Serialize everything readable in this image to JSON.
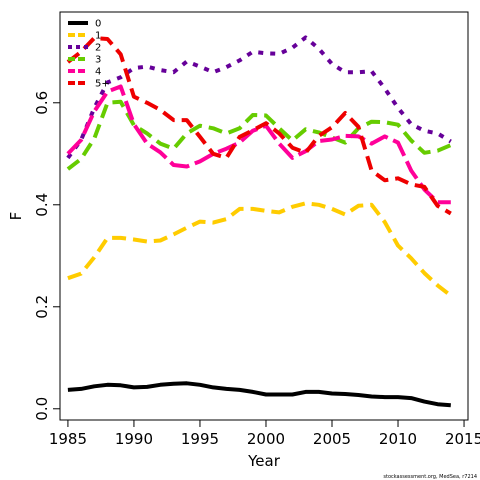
{
  "chart_data": {
    "type": "line",
    "xlabel": "Year",
    "ylabel": "F",
    "xlim": [
      1985,
      2015
    ],
    "ylim": [
      0,
      0.75
    ],
    "x_ticks": [
      1985,
      1990,
      1995,
      2000,
      2005,
      2010,
      2015
    ],
    "y_ticks": [
      0.0,
      0.2,
      0.4,
      0.6
    ],
    "x_tick_labels": [
      "1985",
      "1990",
      "1995",
      "2000",
      "2005",
      "2010",
      "2015"
    ],
    "y_tick_labels": [
      "0.0",
      "0.2",
      "0.4",
      "0.6"
    ],
    "legend_position": "top-left",
    "grid": false,
    "credit": "stockassessment.org, MedSea, r7214",
    "x": [
      1985,
      1986,
      1987,
      1988,
      1989,
      1990,
      1991,
      1992,
      1993,
      1994,
      1995,
      1996,
      1997,
      1998,
      1999,
      2000,
      2001,
      2002,
      2003,
      2004,
      2005,
      2006,
      2007,
      2008,
      2009,
      2010,
      2011,
      2012,
      2013,
      2014
    ],
    "series": [
      {
        "name": "0",
        "color": "#000000",
        "dash": "solid",
        "values": [
          0.037,
          0.039,
          0.044,
          0.047,
          0.046,
          0.042,
          0.043,
          0.047,
          0.049,
          0.05,
          0.047,
          0.042,
          0.039,
          0.037,
          0.033,
          0.028,
          0.028,
          0.028,
          0.033,
          0.033,
          0.03,
          0.029,
          0.027,
          0.024,
          0.023,
          0.023,
          0.021,
          0.014,
          0.009,
          0.007
        ]
      },
      {
        "name": "1",
        "color": "#FFCC00",
        "dash": "dash",
        "values": [
          0.256,
          0.265,
          0.297,
          0.335,
          0.335,
          0.332,
          0.328,
          0.33,
          0.342,
          0.355,
          0.367,
          0.365,
          0.372,
          0.392,
          0.392,
          0.388,
          0.385,
          0.396,
          0.403,
          0.4,
          0.392,
          0.381,
          0.398,
          0.4,
          0.366,
          0.32,
          0.295,
          0.266,
          0.242,
          0.222
        ]
      },
      {
        "name": "2",
        "color": "#660099",
        "dash": "dot",
        "values": [
          0.492,
          0.527,
          0.59,
          0.64,
          0.65,
          0.668,
          0.671,
          0.664,
          0.66,
          0.681,
          0.671,
          0.66,
          0.67,
          0.683,
          0.7,
          0.697,
          0.696,
          0.708,
          0.728,
          0.706,
          0.676,
          0.66,
          0.66,
          0.662,
          0.628,
          0.59,
          0.558,
          0.545,
          0.54,
          0.524
        ]
      },
      {
        "name": "3",
        "color": "#66CC00",
        "dash": "dash",
        "values": [
          0.47,
          0.49,
          0.53,
          0.6,
          0.602,
          0.556,
          0.54,
          0.52,
          0.51,
          0.54,
          0.555,
          0.55,
          0.54,
          0.55,
          0.576,
          0.575,
          0.55,
          0.526,
          0.548,
          0.542,
          0.532,
          0.522,
          0.55,
          0.563,
          0.562,
          0.557,
          0.526,
          0.502,
          0.506,
          0.517
        ]
      },
      {
        "name": "4",
        "color": "#FF0099",
        "dash": "longdash",
        "values": [
          0.5,
          0.527,
          0.583,
          0.622,
          0.632,
          0.558,
          0.52,
          0.503,
          0.478,
          0.475,
          0.485,
          0.5,
          0.51,
          0.522,
          0.545,
          0.555,
          0.52,
          0.492,
          0.505,
          0.525,
          0.528,
          0.535,
          0.534,
          0.52,
          0.534,
          0.522,
          0.467,
          0.43,
          0.405,
          0.405
        ]
      },
      {
        "name": "5+",
        "color": "#EE0000",
        "dash": "dash",
        "values": [
          0.68,
          0.7,
          0.727,
          0.725,
          0.695,
          0.612,
          0.6,
          0.586,
          0.566,
          0.566,
          0.533,
          0.5,
          0.492,
          0.533,
          0.546,
          0.56,
          0.54,
          0.512,
          0.502,
          0.535,
          0.552,
          0.58,
          0.553,
          0.467,
          0.448,
          0.452,
          0.44,
          0.435,
          0.398,
          0.383
        ]
      }
    ]
  }
}
